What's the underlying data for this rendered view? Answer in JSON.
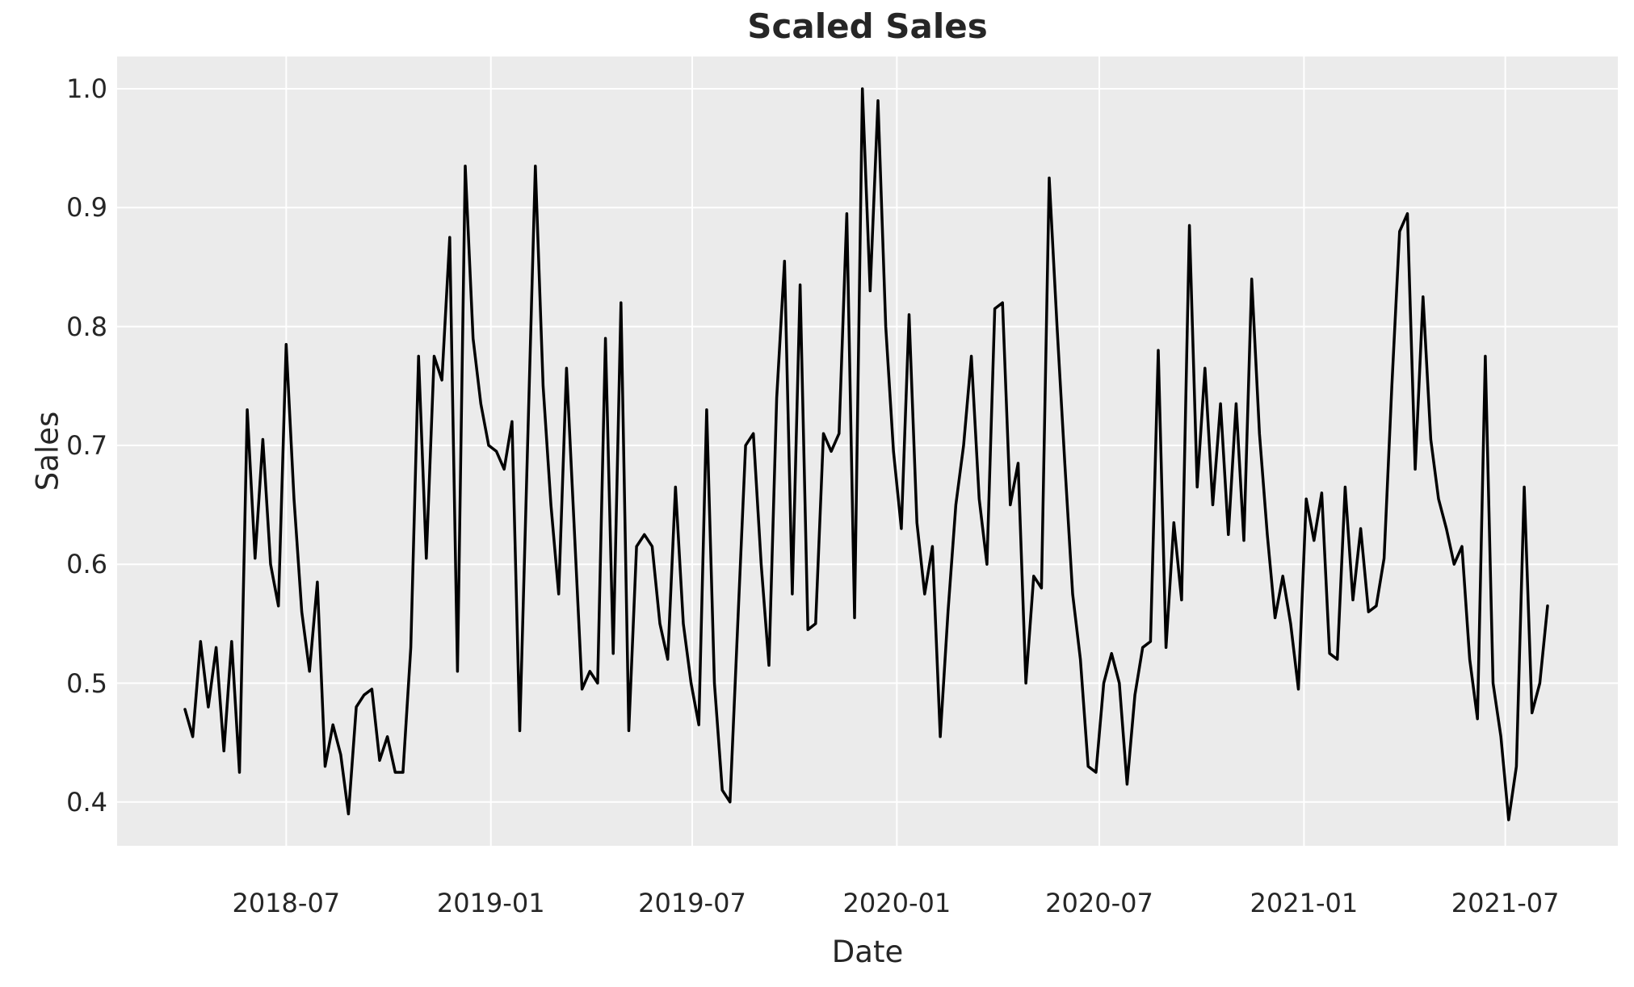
{
  "title": "Scaled Sales",
  "axes": {
    "xlabel": "Date",
    "ylabel": "Sales"
  },
  "chart_data": {
    "type": "line",
    "title": "Scaled Sales",
    "xlabel": "Date",
    "ylabel": "Sales",
    "legend": null,
    "grid": true,
    "plot_bg_color": "#EBEBEB",
    "grid_color": "#FFFFFF",
    "line_color": "#000000",
    "text_color": "#262626",
    "ylim": [
      0.363,
      1.027
    ],
    "y_ticks": [
      0.4,
      0.5,
      0.6,
      0.7,
      0.8,
      0.9,
      1.0
    ],
    "x_tick_labels": [
      "2018-07",
      "2019-01",
      "2019-07",
      "2020-01",
      "2020-07",
      "2021-01",
      "2021-07"
    ],
    "x_start_date": "2018-04-01",
    "x_end_date": "2021-08-08",
    "x_freq": "weekly",
    "series_name": "Sales",
    "values": [
      0.478,
      0.455,
      0.535,
      0.48,
      0.53,
      0.443,
      0.535,
      0.425,
      0.73,
      0.605,
      0.705,
      0.6,
      0.565,
      0.785,
      0.655,
      0.56,
      0.51,
      0.585,
      0.43,
      0.465,
      0.44,
      0.39,
      0.48,
      0.49,
      0.495,
      0.435,
      0.455,
      0.425,
      0.425,
      0.53,
      0.775,
      0.605,
      0.775,
      0.755,
      0.875,
      0.51,
      0.935,
      0.79,
      0.735,
      0.7,
      0.695,
      0.68,
      0.72,
      0.46,
      0.7,
      0.935,
      0.75,
      0.65,
      0.575,
      0.765,
      0.63,
      0.495,
      0.51,
      0.5,
      0.79,
      0.525,
      0.82,
      0.46,
      0.615,
      0.625,
      0.615,
      0.55,
      0.52,
      0.665,
      0.55,
      0.5,
      0.465,
      0.73,
      0.5,
      0.41,
      0.4,
      0.55,
      0.7,
      0.71,
      0.6,
      0.515,
      0.74,
      0.855,
      0.575,
      0.835,
      0.545,
      0.55,
      0.71,
      0.695,
      0.71,
      0.895,
      0.555,
      1.0,
      0.83,
      0.99,
      0.8,
      0.695,
      0.63,
      0.81,
      0.635,
      0.575,
      0.615,
      0.455,
      0.56,
      0.65,
      0.7,
      0.775,
      0.655,
      0.6,
      0.815,
      0.82,
      0.65,
      0.685,
      0.5,
      0.59,
      0.58,
      0.925,
      0.8,
      0.685,
      0.575,
      0.52,
      0.43,
      0.425,
      0.5,
      0.525,
      0.5,
      0.415,
      0.49,
      0.53,
      0.535,
      0.78,
      0.53,
      0.635,
      0.57,
      0.885,
      0.665,
      0.765,
      0.65,
      0.735,
      0.625,
      0.735,
      0.62,
      0.84,
      0.71,
      0.625,
      0.555,
      0.59,
      0.55,
      0.495,
      0.655,
      0.62,
      0.66,
      0.525,
      0.52,
      0.665,
      0.57,
      0.63,
      0.56,
      0.565,
      0.605,
      0.75,
      0.88,
      0.895,
      0.68,
      0.825,
      0.705,
      0.655,
      0.63,
      0.6,
      0.615,
      0.52,
      0.47,
      0.775,
      0.5,
      0.455,
      0.385,
      0.43,
      0.665,
      0.475,
      0.5,
      0.565
    ]
  }
}
